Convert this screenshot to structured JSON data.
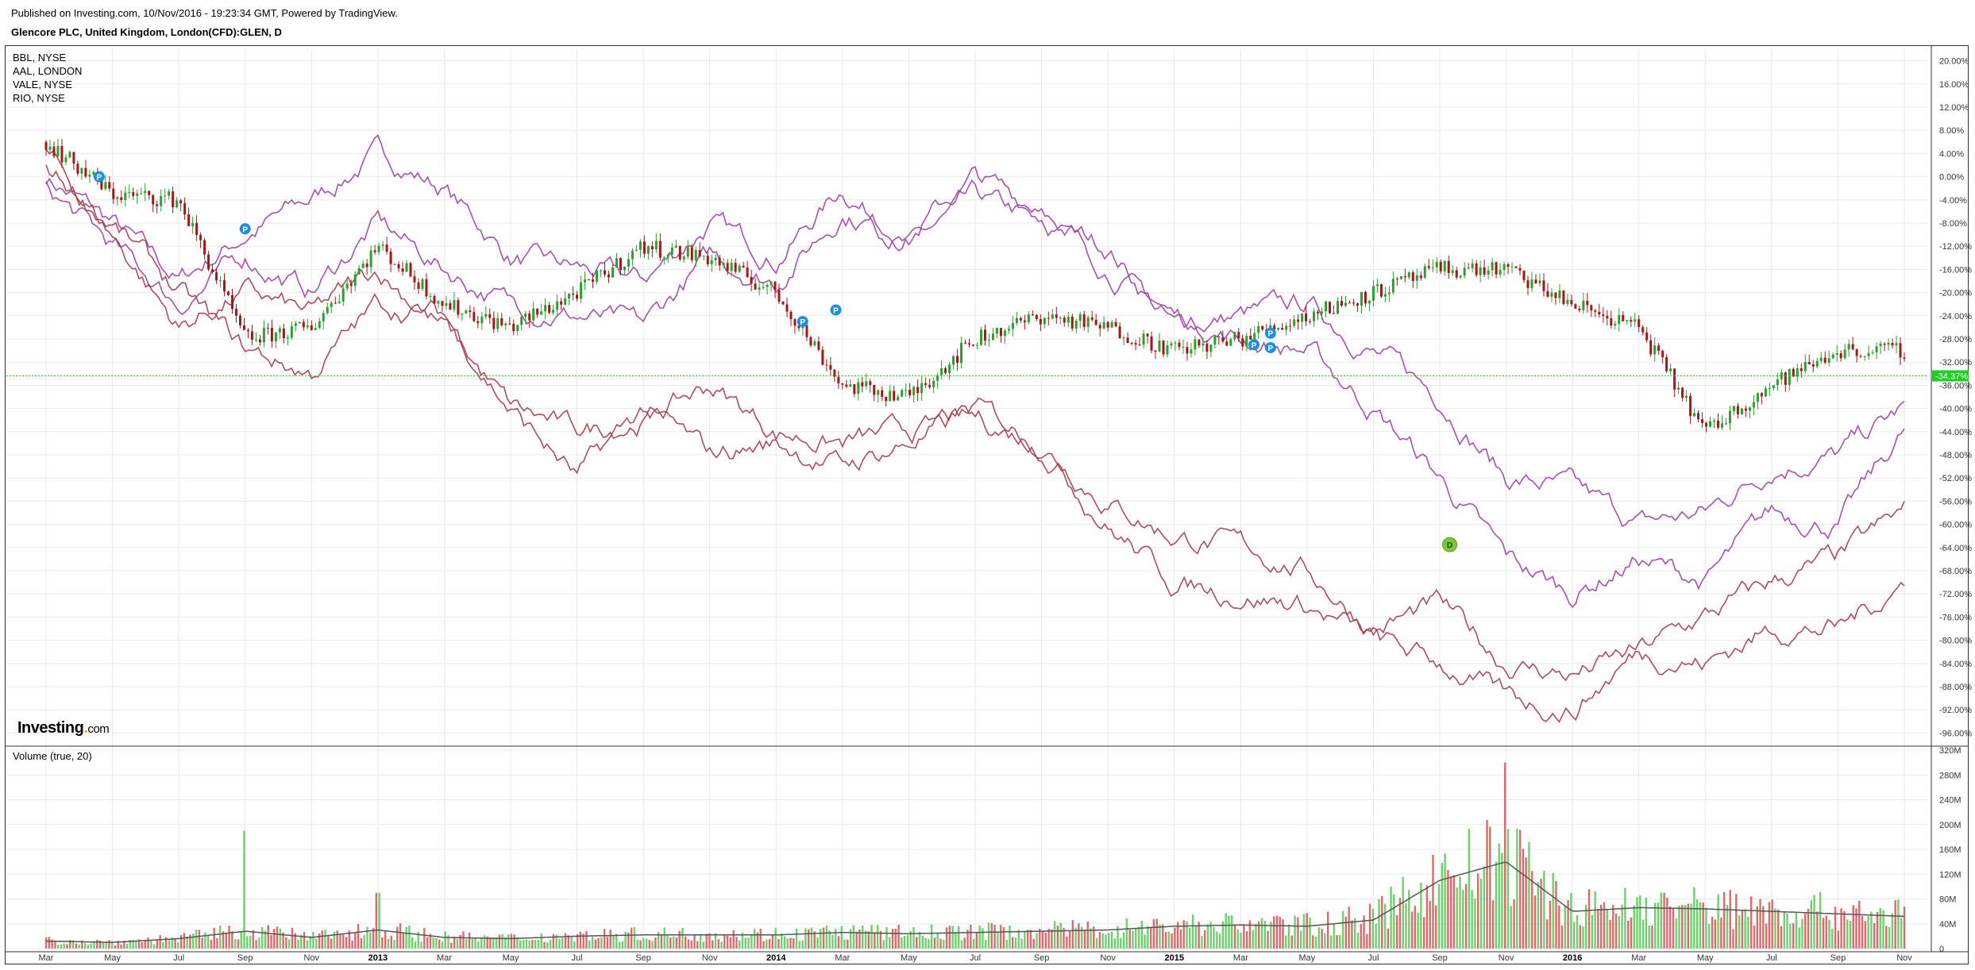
{
  "header": {
    "published": "Published on Investing.com, 10/Nov/2016 - 19:23:34 GMT, Powered by TradingView.",
    "symbol": "Glencore PLC, United Kingdom, London(CFD):GLEN, D"
  },
  "legend": [
    "BBL, NYSE",
    "AAL, LONDON",
    "VALE, NYSE",
    "RIO, NYSE"
  ],
  "volume_title": "Volume (true, 20)",
  "logo": {
    "main": "Investing",
    "suffix": "com"
  },
  "price_marker": "-34.37%",
  "colors": {
    "up": "#2e9e2e",
    "down": "#a01818",
    "purple": "#9b3fa3",
    "maroon": "#a33a4a",
    "vol_up": "#6fcf6f",
    "vol_down": "#d96b6b",
    "grid": "#e8e8e8",
    "marker": "#22cc22"
  },
  "chart_data": [
    {
      "type": "line",
      "title": "Glencore PLC, United Kingdom, London(CFD):GLEN, D",
      "y_unit": "%",
      "ylim": [
        -98,
        22
      ],
      "grid": true,
      "x_ticks": [
        "Mar",
        "May",
        "Jul",
        "Sep",
        "Nov",
        "2013",
        "Mar",
        "May",
        "Jul",
        "Sep",
        "Nov",
        "2014",
        "Mar",
        "May",
        "Jul",
        "Sep",
        "Nov",
        "2015",
        "Mar",
        "May",
        "Jul",
        "Sep",
        "Nov",
        "2016",
        "Mar",
        "May",
        "Jul",
        "Sep",
        "Nov"
      ],
      "y_ticks": [
        20,
        16,
        12,
        8,
        4,
        0,
        -4,
        -8,
        -12,
        -16,
        -20,
        -24,
        -28,
        -32,
        -36,
        -40,
        -44,
        -48,
        -52,
        -56,
        -60,
        -64,
        -68,
        -72,
        -76,
        -80,
        -84,
        -88,
        -92,
        -96
      ],
      "series": [
        {
          "name": "GLEN",
          "style": "candlestick",
          "x": [
            0,
            1,
            2,
            3,
            4,
            5,
            6,
            7,
            8,
            9,
            10,
            11,
            12,
            13,
            14,
            15,
            16,
            17,
            18,
            19,
            20,
            21,
            22,
            23,
            24,
            25,
            26,
            27,
            28
          ],
          "y": [
            6,
            -3,
            -4,
            -28,
            -26,
            -12,
            -22,
            -26,
            -20,
            -12,
            -14,
            -20,
            -36,
            -38,
            -28,
            -24,
            -26,
            -30,
            -28,
            -24,
            -20,
            -16,
            -16,
            -22,
            -26,
            -44,
            -36,
            -30,
            -30
          ]
        },
        {
          "name": "BBL, NYSE",
          "x": [
            0,
            1,
            2,
            3,
            4,
            5,
            6,
            7,
            8,
            9,
            10,
            11,
            12,
            13,
            14,
            15,
            16,
            17,
            18,
            19,
            20,
            21,
            22,
            23,
            24,
            25,
            26,
            27,
            28
          ],
          "y": [
            0,
            -8,
            -18,
            -10,
            -4,
            4,
            -2,
            -14,
            -16,
            -18,
            -8,
            -14,
            -2,
            -12,
            -4,
            -8,
            -12,
            -26,
            -24,
            -22,
            -30,
            -38,
            -52,
            -54,
            -60,
            -58,
            -50,
            -48,
            -40
          ]
        },
        {
          "name": "AAL, LONDON",
          "x": [
            0,
            1,
            2,
            3,
            4,
            5,
            6,
            7,
            8,
            9,
            10,
            11,
            12,
            13,
            14,
            15,
            16,
            17,
            18,
            19,
            20,
            21,
            22,
            23,
            24,
            25,
            26,
            27,
            28
          ],
          "y": [
            -2,
            -12,
            -22,
            -14,
            -20,
            -8,
            -16,
            -22,
            -24,
            -26,
            -14,
            -18,
            -6,
            -10,
            0,
            -6,
            -16,
            -24,
            -28,
            -30,
            -40,
            -52,
            -66,
            -72,
            -66,
            -70,
            -58,
            -60,
            -44
          ]
        },
        {
          "name": "VALE, NYSE",
          "x": [
            0,
            1,
            2,
            3,
            4,
            5,
            6,
            7,
            8,
            9,
            10,
            11,
            12,
            13,
            14,
            15,
            16,
            17,
            18,
            19,
            20,
            21,
            22,
            23,
            24,
            25,
            26,
            27,
            28
          ],
          "y": [
            4,
            -10,
            -26,
            -20,
            -24,
            -16,
            -26,
            -40,
            -44,
            -42,
            -36,
            -44,
            -46,
            -44,
            -42,
            -46,
            -56,
            -62,
            -64,
            -68,
            -78,
            -74,
            -84,
            -86,
            -82,
            -76,
            -70,
            -66,
            -58
          ]
        },
        {
          "name": "RIO, NYSE",
          "x": [
            0,
            1,
            2,
            3,
            4,
            5,
            6,
            7,
            8,
            9,
            10,
            11,
            12,
            13,
            14,
            15,
            16,
            17,
            18,
            19,
            20,
            21,
            22,
            23,
            24,
            25,
            26,
            27,
            28
          ],
          "y": [
            2,
            -8,
            -20,
            -30,
            -34,
            -22,
            -24,
            -40,
            -52,
            -40,
            -48,
            -46,
            -50,
            -46,
            -40,
            -46,
            -60,
            -70,
            -72,
            -74,
            -80,
            -84,
            -90,
            -92,
            -82,
            -84,
            -78,
            -78,
            -70
          ]
        }
      ]
    },
    {
      "type": "bar",
      "title": "Volume (true, 20)",
      "y_unit": "M",
      "ylim": [
        0,
        320
      ],
      "y_ticks": [
        320,
        280,
        240,
        200,
        160,
        120,
        80,
        40,
        0
      ],
      "y_tick_labels": [
        "320M",
        "280M",
        "240M",
        "200M",
        "160M",
        "120M",
        "80M",
        "40M",
        "0"
      ],
      "x": [
        0,
        1,
        2,
        3,
        4,
        5,
        6,
        7,
        8,
        9,
        10,
        11,
        12,
        13,
        14,
        15,
        16,
        17,
        18,
        19,
        20,
        21,
        22,
        23,
        24,
        25,
        26,
        27,
        28
      ],
      "values": [
        14,
        12,
        18,
        190,
        22,
        90,
        20,
        18,
        24,
        30,
        22,
        26,
        30,
        26,
        28,
        34,
        36,
        44,
        46,
        42,
        52,
        150,
        300,
        82,
        86,
        76,
        80,
        74,
        60
      ],
      "ma20": [
        12,
        10,
        16,
        28,
        18,
        30,
        18,
        16,
        20,
        22,
        22,
        22,
        26,
        24,
        26,
        28,
        30,
        36,
        38,
        36,
        46,
        110,
        140,
        60,
        66,
        64,
        60,
        56,
        52
      ]
    }
  ]
}
